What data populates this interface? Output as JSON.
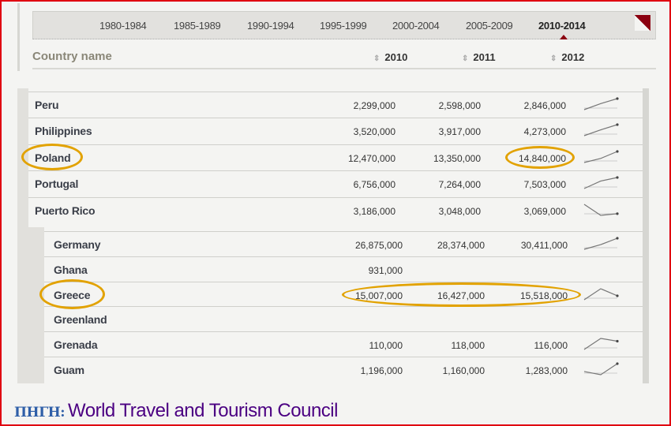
{
  "periods": [
    "1980-1984",
    "1985-1989",
    "1990-1994",
    "1995-1999",
    "2000-2004",
    "2005-2009",
    "2010-2014"
  ],
  "active_period": "2010-2014",
  "header": {
    "country": "Country name",
    "years": [
      "2010",
      "2011",
      "2012"
    ]
  },
  "upper_rows": [
    {
      "name": "Peru",
      "values": [
        "2,299,000",
        "2,598,000",
        "2,846,000"
      ],
      "series": [
        2299000,
        2598000,
        2846000
      ]
    },
    {
      "name": "Philippines",
      "values": [
        "3,520,000",
        "3,917,000",
        "4,273,000"
      ],
      "series": [
        3520000,
        3917000,
        4273000
      ]
    },
    {
      "name": "Poland",
      "values": [
        "12,470,000",
        "13,350,000",
        "14,840,000"
      ],
      "series": [
        12470000,
        13350000,
        14840000
      ]
    },
    {
      "name": "Portugal",
      "values": [
        "6,756,000",
        "7,264,000",
        "7,503,000"
      ],
      "series": [
        6756000,
        7264000,
        7503000
      ]
    },
    {
      "name": "Puerto Rico",
      "values": [
        "3,186,000",
        "3,048,000",
        "3,069,000"
      ],
      "series": [
        3186000,
        3048000,
        3069000
      ]
    }
  ],
  "lower_rows": [
    {
      "name": "Germany",
      "values": [
        "26,875,000",
        "28,374,000",
        "30,411,000"
      ],
      "series": [
        26875000,
        28374000,
        30411000
      ]
    },
    {
      "name": "Ghana",
      "values": [
        "931,000",
        "",
        ""
      ],
      "series": []
    },
    {
      "name": "Greece",
      "values": [
        "15,007,000",
        "16,427,000",
        "15,518,000"
      ],
      "series": [
        15007000,
        16427000,
        15518000
      ]
    },
    {
      "name": "Greenland",
      "values": [
        "",
        "",
        ""
      ],
      "series": []
    },
    {
      "name": "Grenada",
      "values": [
        "110,000",
        "118,000",
        "116,000"
      ],
      "series": [
        110000,
        118000,
        116000
      ]
    },
    {
      "name": "Guam",
      "values": [
        "1,196,000",
        "1,160,000",
        "1,283,000"
      ],
      "series": [
        1196000,
        1160000,
        1283000
      ]
    }
  ],
  "source": {
    "label": "ΠΗΓΗ:",
    "text": "World Travel and Tourism Council"
  },
  "colors": {
    "highlight": "#e2a200",
    "accent": "#8b0010",
    "border": "#e00010"
  }
}
